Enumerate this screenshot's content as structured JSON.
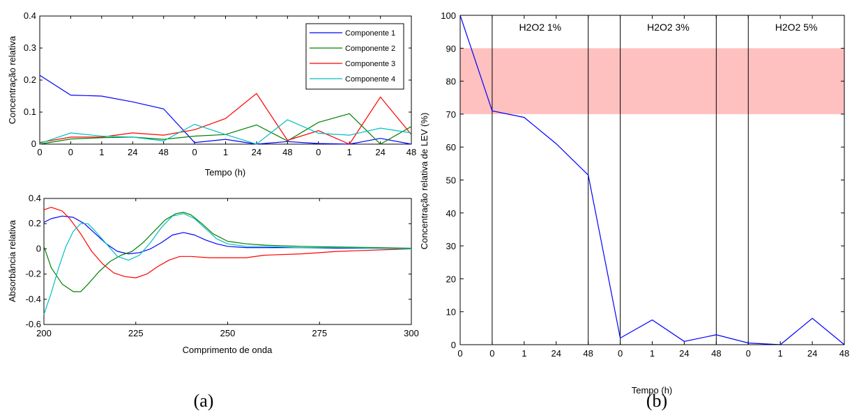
{
  "panel_a_caption": "(a)",
  "panel_b_caption": "(b)",
  "chart_data": [
    {
      "id": "a_top",
      "type": "line",
      "xlabel": "Tempo (h)",
      "ylabel": "Concentração relativa",
      "x_tick_labels": [
        "0",
        "0",
        "1",
        "24",
        "48",
        "0",
        "1",
        "24",
        "48",
        "0",
        "1",
        "24",
        "48"
      ],
      "ylim": [
        0,
        0.4
      ],
      "yticks": [
        0,
        0.1,
        0.2,
        0.3,
        0.4
      ],
      "ytick_labels": [
        "0",
        "0.1",
        "0.2",
        "0.3",
        "0.4"
      ],
      "legend_position": "top-right",
      "series": [
        {
          "name": "Componente 1",
          "color": "#0000ff",
          "values": [
            0.215,
            0.153,
            0.15,
            0.132,
            0.11,
            0.005,
            0.015,
            0.0,
            0.008,
            0.002,
            0.0,
            0.018,
            0.0
          ]
        },
        {
          "name": "Componente 2",
          "color": "#008000",
          "values": [
            0.0,
            0.016,
            0.02,
            0.022,
            0.015,
            0.025,
            0.03,
            0.06,
            0.01,
            0.068,
            0.095,
            0.0,
            0.055
          ]
        },
        {
          "name": "Componente 3",
          "color": "#ff0000",
          "values": [
            0.005,
            0.022,
            0.022,
            0.035,
            0.028,
            0.045,
            0.08,
            0.158,
            0.012,
            0.042,
            0.0,
            0.147,
            0.03
          ]
        },
        {
          "name": "Componente 4",
          "color": "#00bfbf",
          "values": [
            0.002,
            0.035,
            0.025,
            0.022,
            0.01,
            0.062,
            0.03,
            0.0,
            0.076,
            0.034,
            0.028,
            0.05,
            0.035
          ]
        }
      ]
    },
    {
      "id": "a_bottom",
      "type": "line",
      "xlabel": "Comprimento de onda",
      "ylabel": "Absorbância relativa",
      "xlim": [
        200,
        300
      ],
      "xticks": [
        200,
        225,
        250,
        275,
        300
      ],
      "ylim": [
        -0.6,
        0.4
      ],
      "yticks": [
        -0.6,
        -0.4,
        -0.2,
        0,
        0.2,
        0.4
      ],
      "ytick_labels": [
        "-0.6",
        "-0.4",
        "-0.2",
        "0",
        "0.2",
        "0.4"
      ],
      "series": [
        {
          "color": "#0000ff",
          "x": [
            200,
            202,
            205,
            208,
            211,
            214,
            217,
            220,
            223,
            226,
            229,
            232,
            235,
            238,
            241,
            244,
            247,
            250,
            255,
            260,
            270,
            280,
            290,
            300
          ],
          "y": [
            0.21,
            0.24,
            0.26,
            0.25,
            0.2,
            0.12,
            0.04,
            -0.02,
            -0.04,
            -0.03,
            0.0,
            0.05,
            0.11,
            0.13,
            0.11,
            0.07,
            0.04,
            0.02,
            0.01,
            0.01,
            0.01,
            0.005,
            0.005,
            0.0
          ]
        },
        {
          "color": "#008000",
          "x": [
            200,
            202,
            205,
            208,
            210,
            212,
            215,
            218,
            221,
            224,
            227,
            230,
            233,
            236,
            238,
            240,
            243,
            246,
            250,
            255,
            260,
            270,
            280,
            290,
            300
          ],
          "y": [
            0.02,
            -0.15,
            -0.28,
            -0.34,
            -0.34,
            -0.28,
            -0.18,
            -0.1,
            -0.05,
            -0.02,
            0.05,
            0.14,
            0.23,
            0.28,
            0.29,
            0.27,
            0.2,
            0.12,
            0.06,
            0.04,
            0.03,
            0.02,
            0.015,
            0.01,
            0.005
          ]
        },
        {
          "color": "#ff0000",
          "x": [
            200,
            202,
            205,
            207,
            210,
            213,
            216,
            219,
            222,
            225,
            228,
            231,
            234,
            237,
            240,
            245,
            250,
            255,
            260,
            270,
            280,
            290,
            300
          ],
          "y": [
            0.31,
            0.33,
            0.3,
            0.24,
            0.12,
            -0.02,
            -0.12,
            -0.19,
            -0.22,
            -0.23,
            -0.2,
            -0.14,
            -0.09,
            -0.06,
            -0.06,
            -0.07,
            -0.07,
            -0.07,
            -0.05,
            -0.04,
            -0.02,
            -0.01,
            0.0
          ]
        },
        {
          "color": "#00bfbf",
          "x": [
            200,
            202,
            204,
            206,
            208,
            210,
            212,
            214,
            217,
            220,
            223,
            226,
            229,
            232,
            235,
            238,
            241,
            244,
            247,
            250,
            255,
            260,
            270,
            280,
            290,
            300
          ],
          "y": [
            -0.52,
            -0.35,
            -0.15,
            0.02,
            0.14,
            0.2,
            0.2,
            0.14,
            0.04,
            -0.06,
            -0.09,
            -0.05,
            0.05,
            0.17,
            0.26,
            0.28,
            0.24,
            0.16,
            0.08,
            0.04,
            0.02,
            0.02,
            0.01,
            0.01,
            0.005,
            0.0
          ]
        }
      ]
    },
    {
      "id": "b",
      "type": "line",
      "xlabel": "Tempo (h)",
      "ylabel": "Concentração relativa de LEV (%)",
      "x_tick_labels": [
        "0",
        "0",
        "1",
        "24",
        "48",
        "0",
        "1",
        "24",
        "48",
        "0",
        "1",
        "24",
        "48"
      ],
      "ylim": [
        0,
        100
      ],
      "yticks": [
        0,
        10,
        20,
        30,
        40,
        50,
        60,
        70,
        80,
        90,
        100
      ],
      "band": {
        "y_from": 70,
        "y_to": 90,
        "color": "#ffc0c0"
      },
      "region_labels": [
        "H2O2 1%",
        "H2O2 3%",
        "H2O2 5%"
      ],
      "series": [
        {
          "color": "#0000ff",
          "values": [
            100,
            71,
            69,
            61,
            51.5,
            2,
            7.5,
            1,
            3,
            0.5,
            0,
            8,
            0
          ]
        }
      ]
    }
  ]
}
